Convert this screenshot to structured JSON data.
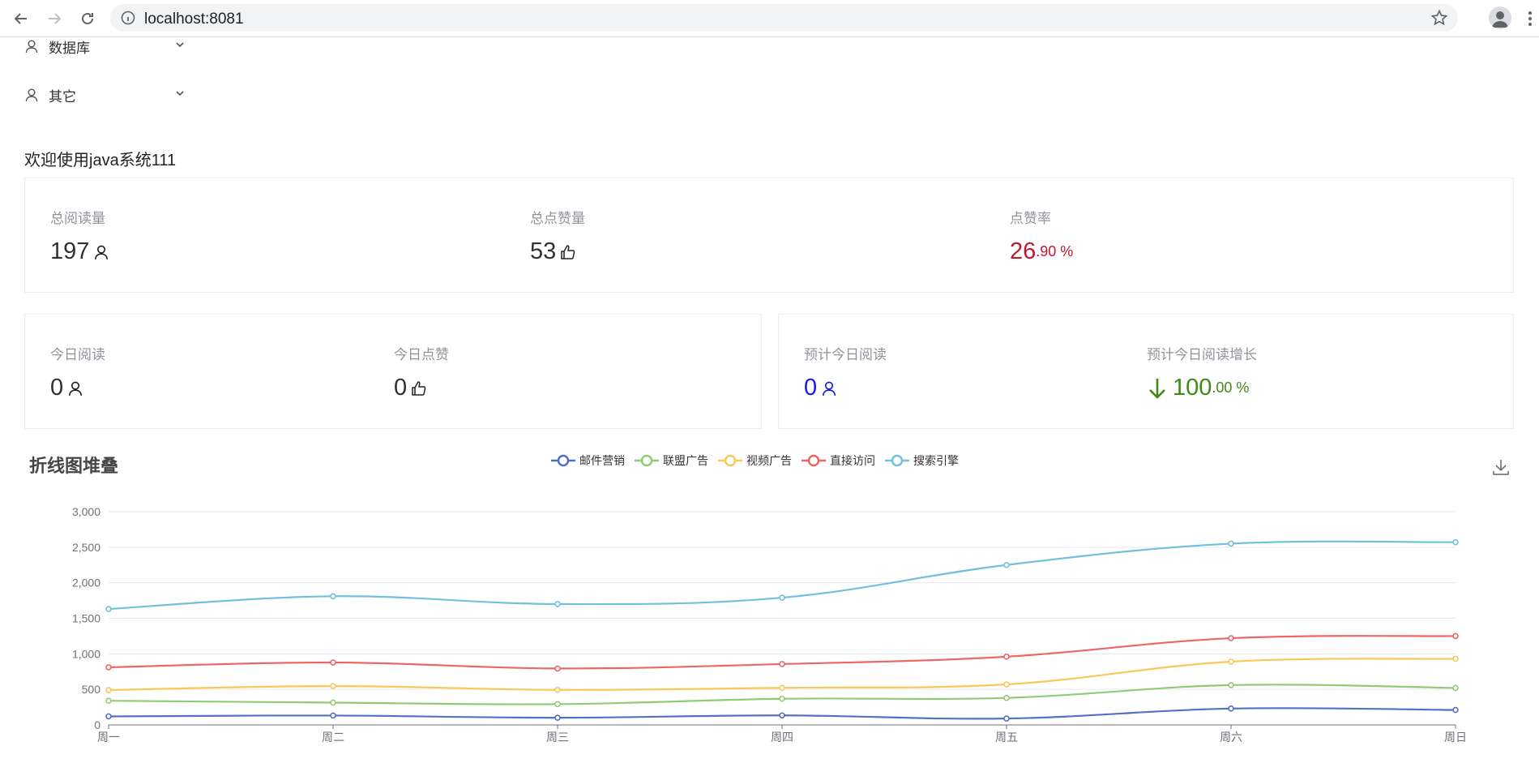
{
  "browser": {
    "url": "localhost:8081"
  },
  "sidebar": {
    "items": [
      {
        "label": "数据库",
        "icon": "user-icon"
      },
      {
        "label": "其它",
        "icon": "user-icon"
      }
    ]
  },
  "welcome": "欢迎使用java系统111",
  "summary": {
    "total_reads": {
      "label": "总阅读量",
      "value": "197"
    },
    "total_likes": {
      "label": "总点赞量",
      "value": "53"
    },
    "like_rate": {
      "label": "点赞率",
      "int": "26",
      "dec": ".90 %",
      "color": "#c0182f"
    }
  },
  "today": {
    "reads": {
      "label": "今日阅读",
      "value": "0"
    },
    "likes": {
      "label": "今日点赞",
      "value": "0"
    }
  },
  "forecast": {
    "reads": {
      "label": "预计今日阅读",
      "value": "0",
      "color": "#1a19e8"
    },
    "growth": {
      "label": "预计今日阅读增长",
      "int": "100",
      "dec": ".00 %",
      "color": "#3e8a12"
    }
  },
  "chart_data": {
    "type": "line",
    "title": "折线图堆叠",
    "categories": [
      "周一",
      "周二",
      "周三",
      "周四",
      "周五",
      "周六",
      "周日"
    ],
    "ylim": [
      0,
      3000
    ],
    "yticks": [
      "0",
      "500",
      "1,000",
      "1,500",
      "2,000",
      "2,500",
      "3,000"
    ],
    "grid": true,
    "legend_position": "top-center",
    "stacked": true,
    "series": [
      {
        "name": "邮件营销",
        "color": "#5470c6",
        "values": [
          120,
          132,
          101,
          134,
          90,
          230,
          210
        ]
      },
      {
        "name": "联盟广告",
        "color": "#91cc75",
        "values": [
          340,
          314,
          292,
          368,
          380,
          560,
          520
        ]
      },
      {
        "name": "视频广告",
        "color": "#fac858",
        "values": [
          490,
          546,
          493,
          522,
          570,
          890,
          930
        ]
      },
      {
        "name": "直接访问",
        "color": "#ee6666",
        "values": [
          810,
          878,
          794,
          856,
          960,
          1220,
          1250
        ]
      },
      {
        "name": "搜索引擎",
        "color": "#73c0de",
        "values": [
          1630,
          1810,
          1700,
          1790,
          2250,
          2550,
          2570
        ]
      }
    ]
  }
}
